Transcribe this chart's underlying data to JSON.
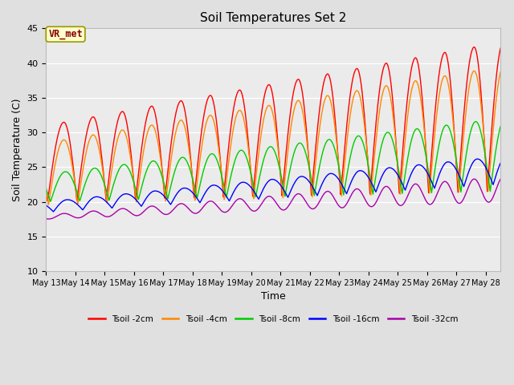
{
  "title": "Soil Temperatures Set 2",
  "xlabel": "Time",
  "ylabel": "Soil Temperature (C)",
  "ylim": [
    10,
    45
  ],
  "background_color": "#e0e0e0",
  "plot_bg_color": "#ebebeb",
  "grid_color": "white",
  "annotation_text": "VR_met",
  "annotation_bg": "#ffffcc",
  "annotation_border": "#999900",
  "annotation_text_color": "#880000",
  "series_colors": [
    "#ff0000",
    "#ff8800",
    "#00cc00",
    "#0000ff",
    "#aa00aa"
  ],
  "series_labels": [
    "Tsoil -2cm",
    "Tsoil -4cm",
    "Tsoil -8cm",
    "Tsoil -16cm",
    "Tsoil -32cm"
  ],
  "xtick_labels": [
    "May 13",
    "May 14",
    "May 15",
    "May 16",
    "May 17",
    "May 18",
    "May 19",
    "May 20",
    "May 21",
    "May 22",
    "May 23",
    "May 24",
    "May 25",
    "May 26",
    "May 27",
    "May 28"
  ]
}
